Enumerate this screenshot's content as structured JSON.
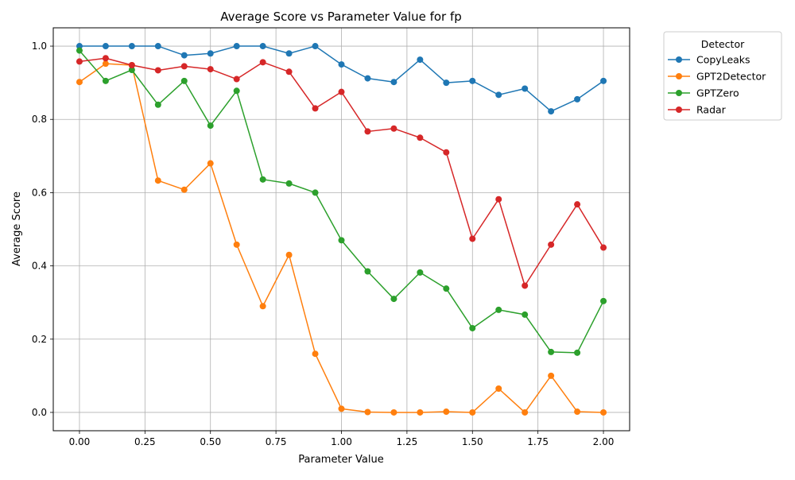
{
  "chart_data": {
    "type": "line",
    "title": "Average Score vs Parameter Value for fp",
    "xlabel": "Parameter Value",
    "ylabel": "Average Score",
    "xlim": [
      -0.1,
      2.1
    ],
    "ylim": [
      -0.05,
      1.05
    ],
    "xticks": [
      0.0,
      0.25,
      0.5,
      0.75,
      1.0,
      1.25,
      1.5,
      1.75,
      2.0
    ],
    "xtick_labels": [
      "0.00",
      "0.25",
      "0.50",
      "0.75",
      "1.00",
      "1.25",
      "1.50",
      "1.75",
      "2.00"
    ],
    "yticks": [
      0.0,
      0.2,
      0.4,
      0.6,
      0.8,
      1.0
    ],
    "ytick_labels": [
      "0.0",
      "0.2",
      "0.4",
      "0.6",
      "0.8",
      "1.0"
    ],
    "grid": true,
    "legend": {
      "title": "Detector",
      "placement": "outside-right"
    },
    "x": [
      0.0,
      0.1,
      0.2,
      0.3,
      0.4,
      0.5,
      0.6,
      0.7,
      0.8,
      0.9,
      1.0,
      1.1,
      1.2,
      1.3,
      1.4,
      1.5,
      1.6,
      1.7,
      1.8,
      1.9,
      2.0
    ],
    "series": [
      {
        "name": "CopyLeaks",
        "color": "#1f77b4",
        "values": [
          1.0,
          1.0,
          1.0,
          1.0,
          0.975,
          0.98,
          1.0,
          1.0,
          0.98,
          1.0,
          0.95,
          0.912,
          0.902,
          0.963,
          0.9,
          0.905,
          0.867,
          0.884,
          0.822,
          0.855,
          0.905
        ]
      },
      {
        "name": "GPT2Detector",
        "color": "#ff7f0e",
        "values": [
          0.902,
          0.952,
          0.948,
          0.633,
          0.608,
          0.68,
          0.458,
          0.29,
          0.43,
          0.16,
          0.01,
          0.001,
          0.0,
          0.0,
          0.002,
          0.0,
          0.065,
          0.0,
          0.1,
          0.002,
          0.0
        ]
      },
      {
        "name": "GPTZero",
        "color": "#2ca02c",
        "values": [
          0.988,
          0.905,
          0.935,
          0.84,
          0.905,
          0.783,
          0.878,
          0.636,
          0.625,
          0.6,
          0.47,
          0.385,
          0.31,
          0.382,
          0.338,
          0.23,
          0.28,
          0.267,
          0.165,
          0.163,
          0.304
        ]
      },
      {
        "name": "Radar",
        "color": "#d62728",
        "values": [
          0.958,
          0.967,
          0.948,
          0.934,
          0.945,
          0.937,
          0.91,
          0.956,
          0.93,
          0.83,
          0.875,
          0.767,
          0.775,
          0.75,
          0.71,
          0.474,
          0.582,
          0.346,
          0.458,
          0.568,
          0.45
        ]
      }
    ]
  }
}
